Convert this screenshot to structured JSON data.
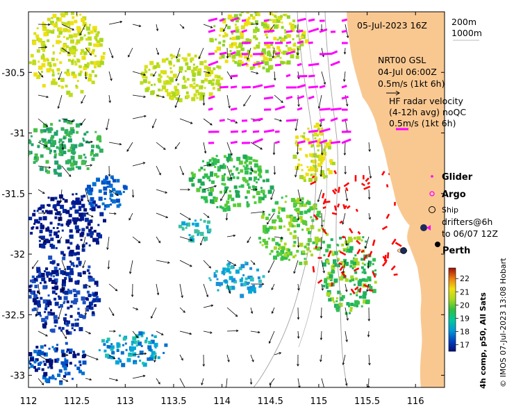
{
  "map": {
    "lon_range": [
      112,
      116.3
    ],
    "lat_range": [
      -33.1,
      -30
    ],
    "x_ticks": [
      "112",
      "112.5",
      "113",
      "113.5",
      "114",
      "114.5",
      "115",
      "115.5",
      "116"
    ],
    "y_ticks": [
      "-30.5",
      "-31",
      "-31.5",
      "-32",
      "-32.5",
      "-33"
    ],
    "land_color": "#f9c891",
    "colors": {
      "glider": "#ff00ff",
      "argo": "#ff00ff",
      "hf_radar": "#ff00ff",
      "drifter": "#ff0000",
      "isobath": "#a0a0a0"
    }
  },
  "annotations": {
    "date": "05-Jul-2023 16Z",
    "isobath_200": "200m",
    "isobath_1000": "1000m",
    "gsl_title": "NRT00 GSL",
    "gsl_date": "04-Jul 06:00Z",
    "gsl_scale": "0.5m/s (1kt 6h)",
    "hf_line1": "HF radar velocity",
    "hf_line2": "(4-12h avg) noQC",
    "hf_scale": "0.5m/s (1kt 6h)"
  },
  "legend": {
    "glider": "Glider",
    "argo": "Argo",
    "ship": "Ship",
    "drifters_line1": "drifters@6h",
    "drifters_line2": "to 06/07 12Z"
  },
  "places": {
    "perth": "Perth"
  },
  "colorbar": {
    "ticks": [
      "17",
      "18",
      "19",
      "20",
      "21",
      "22"
    ],
    "range": [
      16.5,
      22.8
    ],
    "label": "4h comp, p50, All Sats"
  },
  "credit": "© IMOS 07-Jul-2023 13:08 Hobart"
}
